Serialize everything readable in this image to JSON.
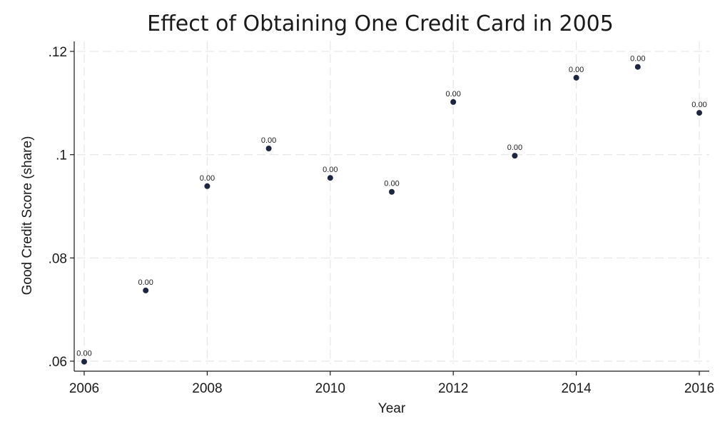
{
  "chart_data": {
    "type": "scatter",
    "title": "Effect of Obtaining One Credit Card in 2005",
    "xlabel": "Year",
    "ylabel": "Good Credit Score (share)",
    "xlim": [
      2006,
      2016
    ],
    "ylim": [
      0.06,
      0.12
    ],
    "xticks": [
      2006,
      2008,
      2010,
      2012,
      2014,
      2016
    ],
    "xtick_labels": [
      "2006",
      "2008",
      "2010",
      "2012",
      "2014",
      "2016"
    ],
    "yticks": [
      0.06,
      0.08,
      0.1,
      0.12
    ],
    "ytick_labels": [
      ".06",
      ".08",
      ".1",
      ".12"
    ],
    "grid": true,
    "point_color": "#1c2541",
    "points": [
      {
        "x": 2006,
        "y": 0.0599,
        "label": "0.00"
      },
      {
        "x": 2007,
        "y": 0.0737,
        "label": "0.00"
      },
      {
        "x": 2008,
        "y": 0.0939,
        "label": "0.00"
      },
      {
        "x": 2009,
        "y": 0.1012,
        "label": "0.00"
      },
      {
        "x": 2010,
        "y": 0.0955,
        "label": "0.00"
      },
      {
        "x": 2011,
        "y": 0.0928,
        "label": "0.00"
      },
      {
        "x": 2012,
        "y": 0.1102,
        "label": "0.00"
      },
      {
        "x": 2013,
        "y": 0.0998,
        "label": "0.00"
      },
      {
        "x": 2014,
        "y": 0.1149,
        "label": "0.00"
      },
      {
        "x": 2015,
        "y": 0.117,
        "label": "0.00"
      },
      {
        "x": 2016,
        "y": 0.1081,
        "label": "0.00"
      }
    ]
  }
}
